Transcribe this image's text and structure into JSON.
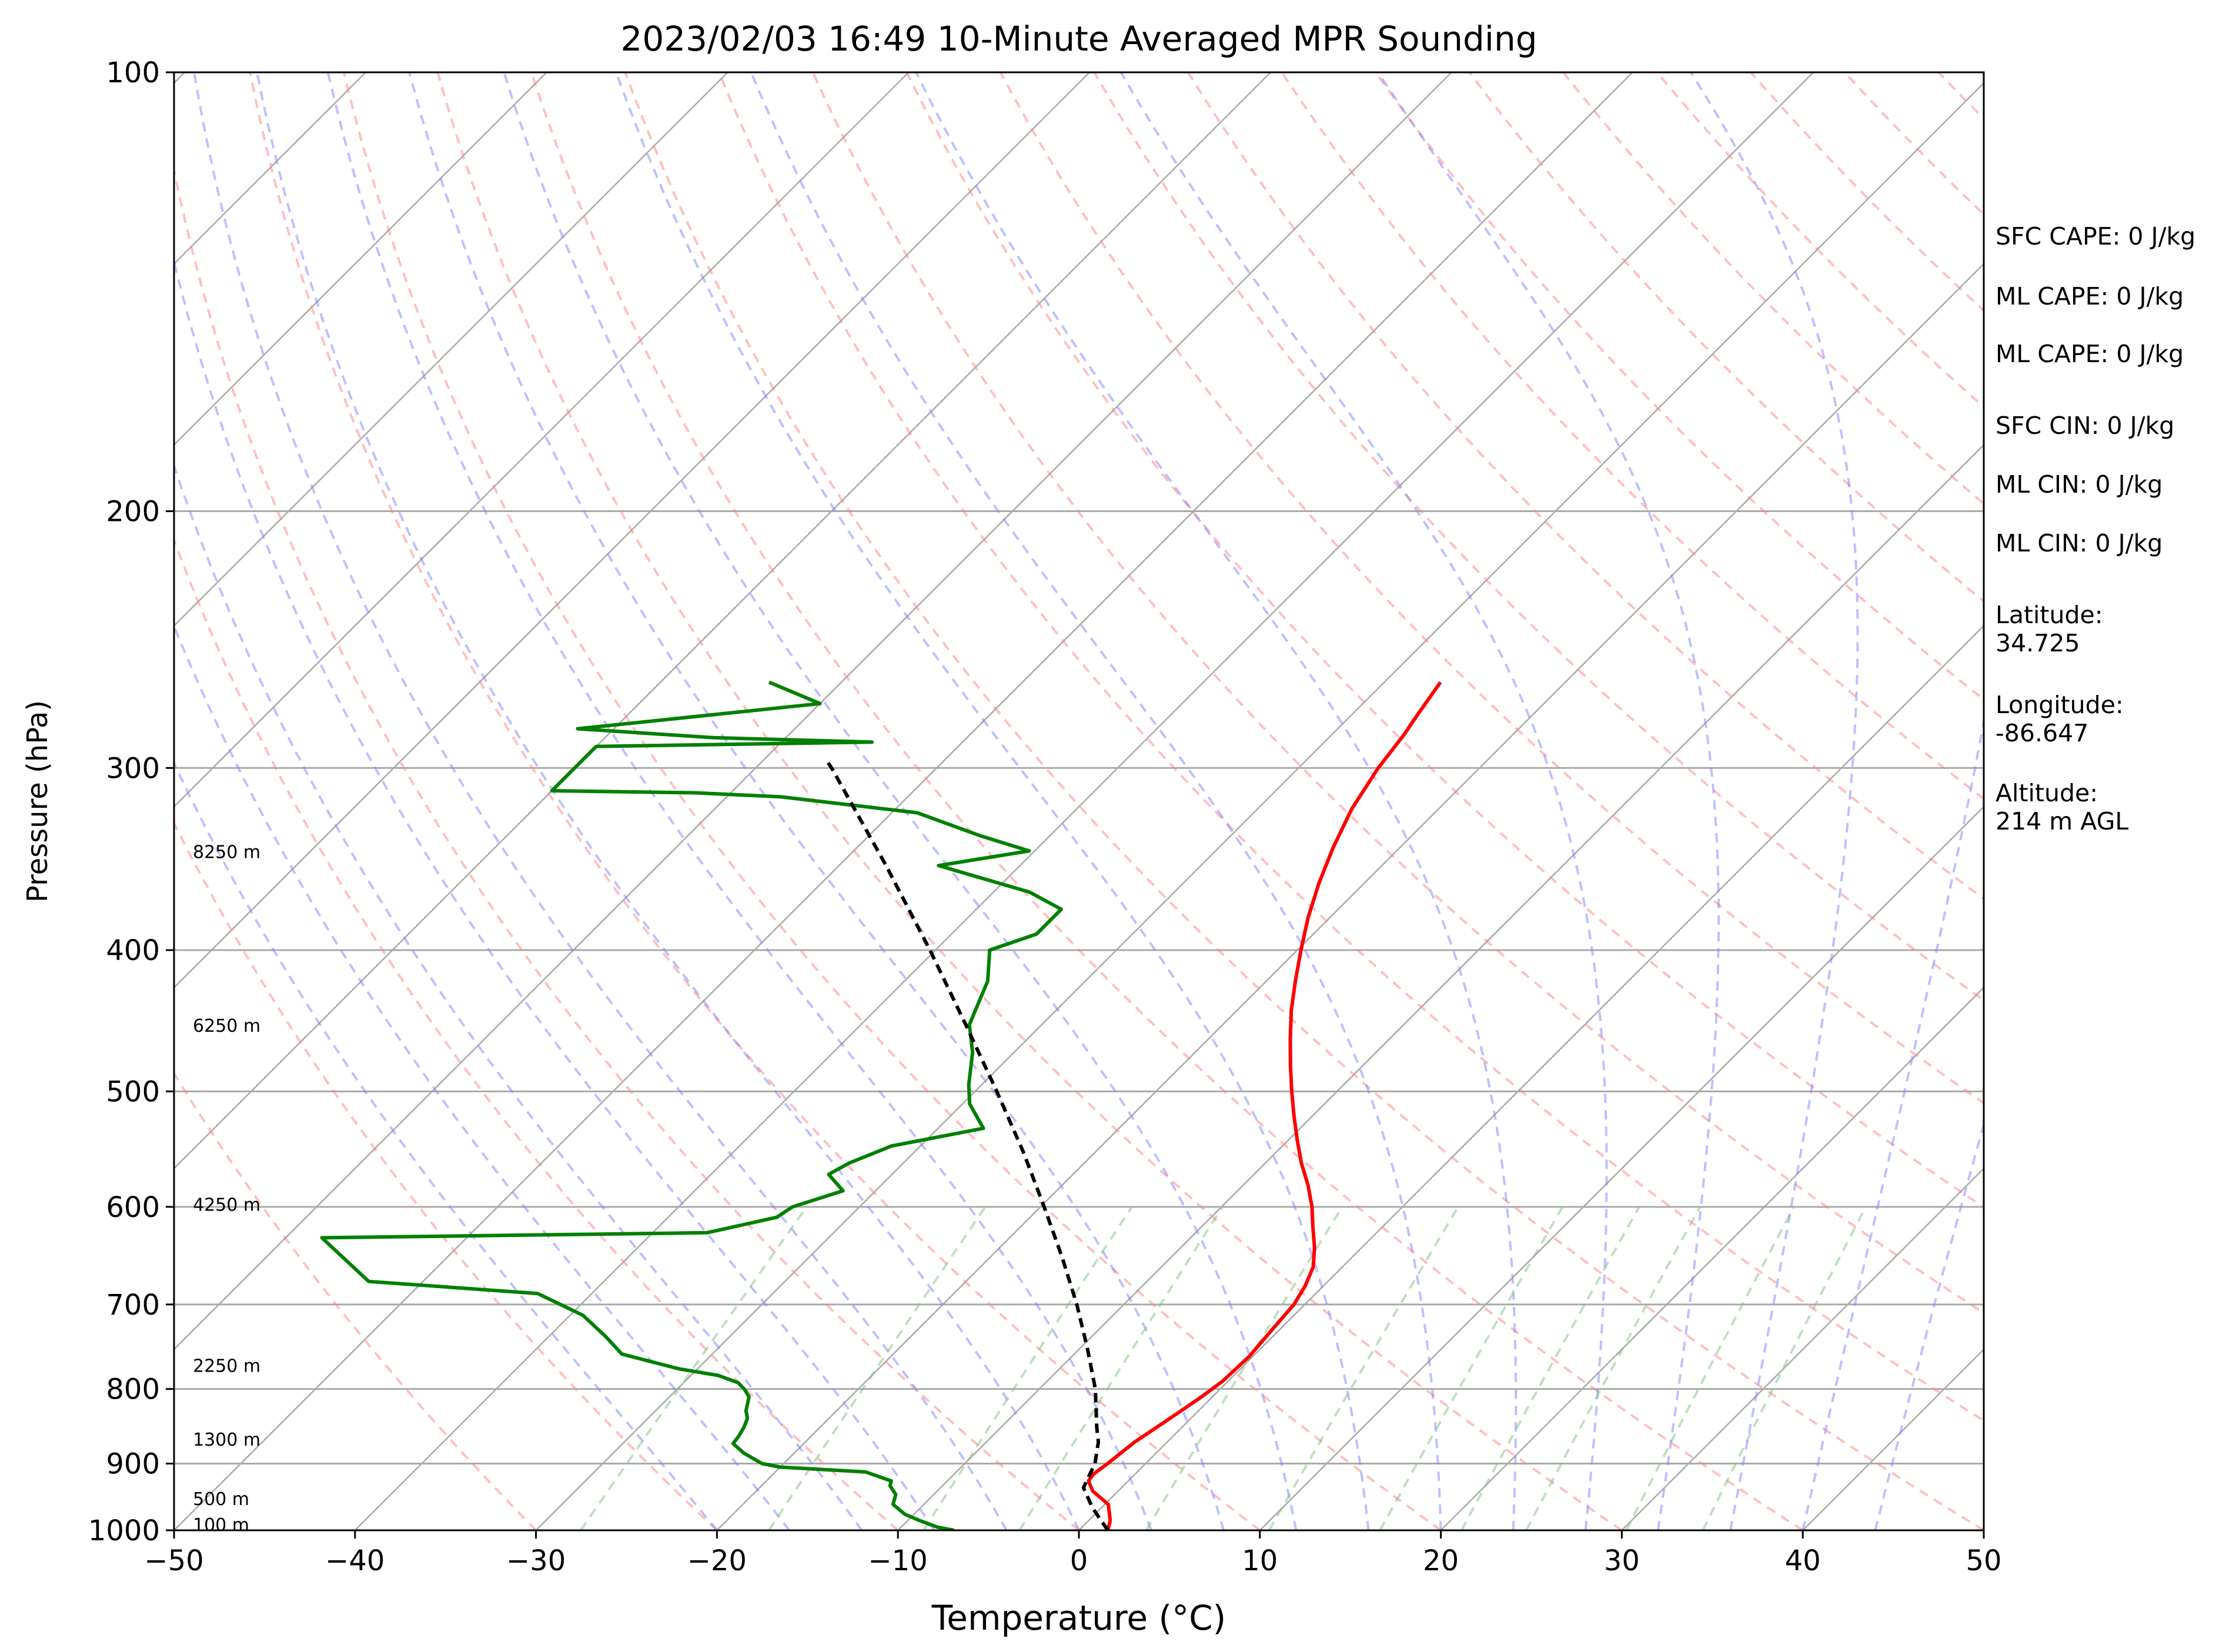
{
  "chart_data": {
    "type": "line",
    "title": "2023/02/03 16:49 10-Minute Averaged MPR Sounding",
    "xlabel": "Temperature (°C)",
    "ylabel": "Pressure (hPa)",
    "xlim": [
      -50,
      50
    ],
    "ylim": [
      1000,
      100
    ],
    "yscale": "log",
    "skew": "skew-T log-p",
    "grid": true,
    "x_ticks": [
      "−50",
      "−40",
      "−30",
      "−20",
      "−10",
      "0",
      "10",
      "20",
      "30",
      "40",
      "50"
    ],
    "y_ticks": [
      "100",
      "200",
      "300",
      "400",
      "500",
      "600",
      "700",
      "800",
      "900",
      "1000"
    ],
    "height_labels": [
      {
        "text": "100 m",
        "p": 990
      },
      {
        "text": "500 m",
        "p": 950
      },
      {
        "text": "1300 m",
        "p": 865
      },
      {
        "text": "2250 m",
        "p": 770
      },
      {
        "text": "4250 m",
        "p": 597
      },
      {
        "text": "6250 m",
        "p": 450
      },
      {
        "text": "8250 m",
        "p": 342
      }
    ],
    "series": [
      {
        "color": "#ff0000",
        "points": [
          [
            1000,
            1.6
          ],
          [
            985,
            1.2
          ],
          [
            960,
            0.2
          ],
          [
            940,
            -1.4
          ],
          [
            925,
            -2.2
          ],
          [
            915,
            -2.3
          ],
          [
            900,
            -2.1
          ],
          [
            870,
            -1.8
          ],
          [
            850,
            -1.4
          ],
          [
            830,
            -1.0
          ],
          [
            810,
            -0.6
          ],
          [
            790,
            -0.3
          ],
          [
            760,
            -0.2
          ],
          [
            730,
            -0.4
          ],
          [
            700,
            -0.6
          ],
          [
            680,
            -1.0
          ],
          [
            660,
            -1.6
          ],
          [
            640,
            -2.6
          ],
          [
            620,
            -3.8
          ],
          [
            600,
            -5.0
          ],
          [
            580,
            -6.4
          ],
          [
            560,
            -8.0
          ],
          [
            540,
            -9.5
          ],
          [
            520,
            -11.0
          ],
          [
            500,
            -12.5
          ],
          [
            480,
            -14.0
          ],
          [
            460,
            -15.5
          ],
          [
            440,
            -17.0
          ],
          [
            420,
            -18.4
          ],
          [
            400,
            -19.8
          ],
          [
            380,
            -21.2
          ],
          [
            360,
            -22.5
          ],
          [
            340,
            -23.7
          ],
          [
            320,
            -24.8
          ],
          [
            300,
            -25.6
          ],
          [
            285,
            -26.0
          ],
          [
            275,
            -26.4
          ],
          [
            262,
            -26.9
          ]
        ]
      },
      {
        "color": "#008000",
        "points": [
          [
            1000,
            -6.9
          ],
          [
            995,
            -8.0
          ],
          [
            985,
            -9.3
          ],
          [
            975,
            -10.5
          ],
          [
            960,
            -11.7
          ],
          [
            945,
            -12.1
          ],
          [
            932,
            -12.9
          ],
          [
            925,
            -13.1
          ],
          [
            912,
            -15.0
          ],
          [
            905,
            -20.0
          ],
          [
            900,
            -21.2
          ],
          [
            885,
            -22.8
          ],
          [
            872,
            -23.9
          ],
          [
            862,
            -24.0
          ],
          [
            850,
            -24.2
          ],
          [
            838,
            -24.5
          ],
          [
            828,
            -25.0
          ],
          [
            810,
            -25.6
          ],
          [
            800,
            -26.3
          ],
          [
            792,
            -27.0
          ],
          [
            783,
            -28.5
          ],
          [
            775,
            -31.0
          ],
          [
            757,
            -35.0
          ],
          [
            737,
            -36.8
          ],
          [
            712,
            -39.3
          ],
          [
            688,
            -43.0
          ],
          [
            675,
            -53.0
          ],
          [
            630,
            -58.0
          ],
          [
            625,
            -37.0
          ],
          [
            610,
            -34.0
          ],
          [
            600,
            -33.7
          ],
          [
            585,
            -31.8
          ],
          [
            570,
            -33.5
          ],
          [
            560,
            -33.0
          ],
          [
            545,
            -31.6
          ],
          [
            530,
            -27.5
          ],
          [
            510,
            -29.6
          ],
          [
            495,
            -30.7
          ],
          [
            470,
            -32.3
          ],
          [
            450,
            -34.0
          ],
          [
            420,
            -35.4
          ],
          [
            400,
            -37.0
          ],
          [
            390,
            -35.3
          ],
          [
            375,
            -35.3
          ],
          [
            365,
            -38.0
          ],
          [
            350,
            -44.5
          ],
          [
            342,
            -40.3
          ],
          [
            334,
            -43.8
          ],
          [
            322,
            -48.6
          ],
          [
            314,
            -57.0
          ],
          [
            312,
            -62.0
          ],
          [
            311,
            -70.0
          ],
          [
            290,
            -70.0
          ],
          [
            288,
            -55.0
          ],
          [
            286,
            -64.0
          ],
          [
            282,
            -72.0
          ],
          [
            271,
            -60.0
          ],
          [
            262,
            -64.0
          ]
        ]
      },
      {
        "color": "#000000",
        "dashed": true,
        "points": [
          [
            1000,
            1.6
          ],
          [
            965,
            -0.5
          ],
          [
            935,
            -2.1
          ],
          [
            925,
            -2.3
          ],
          [
            900,
            -2.8
          ],
          [
            870,
            -3.8
          ],
          [
            850,
            -4.7
          ],
          [
            800,
            -6.9
          ],
          [
            750,
            -9.6
          ],
          [
            700,
            -12.6
          ],
          [
            650,
            -16.0
          ],
          [
            600,
            -19.8
          ],
          [
            550,
            -24.0
          ],
          [
            500,
            -28.8
          ],
          [
            450,
            -34.2
          ],
          [
            400,
            -40.3
          ],
          [
            350,
            -47.4
          ],
          [
            300,
            -55.8
          ],
          [
            296,
            -56.6
          ]
        ]
      }
    ]
  },
  "side_info": {
    "sfc_cape": "SFC CAPE: 0 J/kg",
    "ml_cape_1": "ML CAPE: 0 J/kg",
    "ml_cape_2": "ML CAPE: 0 J/kg",
    "sfc_cin": "SFC CIN: 0 J/kg",
    "ml_cin_1": "ML CIN: 0 J/kg",
    "ml_cin_2": "ML CIN: 0 J/kg",
    "latitude": "Latitude:\n34.725",
    "longitude": "Longitude:\n-86.647",
    "altitude": "Altitude:\n214 m AGL"
  },
  "colors": {
    "isotherm": "#aaaaaa",
    "isobar": "#aaaaaa",
    "dry_adiabat": "#ff8080",
    "moist_adiabat": "#8080ff",
    "mixing_ratio": "#80c080"
  }
}
